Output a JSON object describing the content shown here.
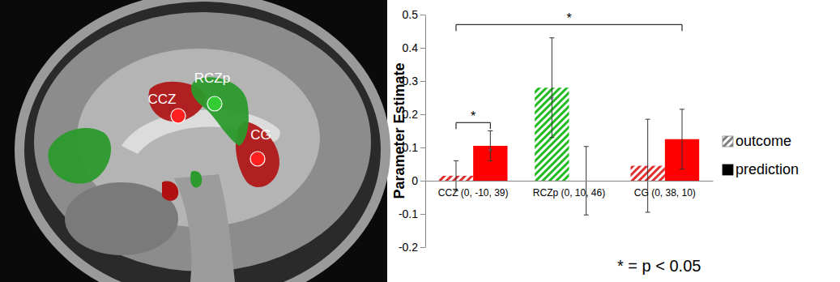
{
  "chart_data": {
    "type": "bar",
    "y_label": "Parameter Estimate",
    "categories": [
      "CCZ (0, -10, 39)",
      "RCZp (0, 10, 46)",
      "CG (0, 38, 10)"
    ],
    "ylim": [
      -0.2,
      0.5
    ],
    "yticks": [
      -0.2,
      -0.1,
      0,
      0.1,
      0.2,
      0.3,
      0.4,
      0.5
    ],
    "legend": "right",
    "series": [
      {
        "name": "outcome",
        "color": "#7f7f7f",
        "line_style": "hatched",
        "colors": [
          "#e03030",
          "#22bb22",
          "#e03030"
        ],
        "values": [
          0.015,
          0.28,
          0.045
        ],
        "errors": [
          0.045,
          0.15,
          0.14
        ]
      },
      {
        "name": "prediction",
        "color": "#000000",
        "line_style": "solid",
        "colors": [
          "#ff0000",
          "#00c800",
          "#ff0000"
        ],
        "values": [
          0.105,
          0,
          0.125
        ],
        "errors": [
          0.045,
          0.103,
          0.09
        ]
      }
    ],
    "brackets": [
      {
        "text": "*",
        "y": 0.175,
        "from": {
          "category": 0,
          "series": 0
        },
        "to": {
          "category": 0,
          "series": 1
        }
      },
      {
        "text": "*",
        "y": 0.47,
        "from": {
          "category": 0,
          "series": 0
        },
        "to": {
          "category": 2,
          "series": 1
        }
      }
    ],
    "bar_stars": [
      {
        "text": "*",
        "category": 1,
        "series": 0,
        "y": 0.26
      },
      {
        "text": "*",
        "category": 0,
        "series": 1,
        "y": 0.105
      }
    ],
    "note": "* = p < 0.05"
  },
  "brain_image": {
    "labels": [
      "CCZ",
      "RCZp",
      "CG"
    ]
  }
}
